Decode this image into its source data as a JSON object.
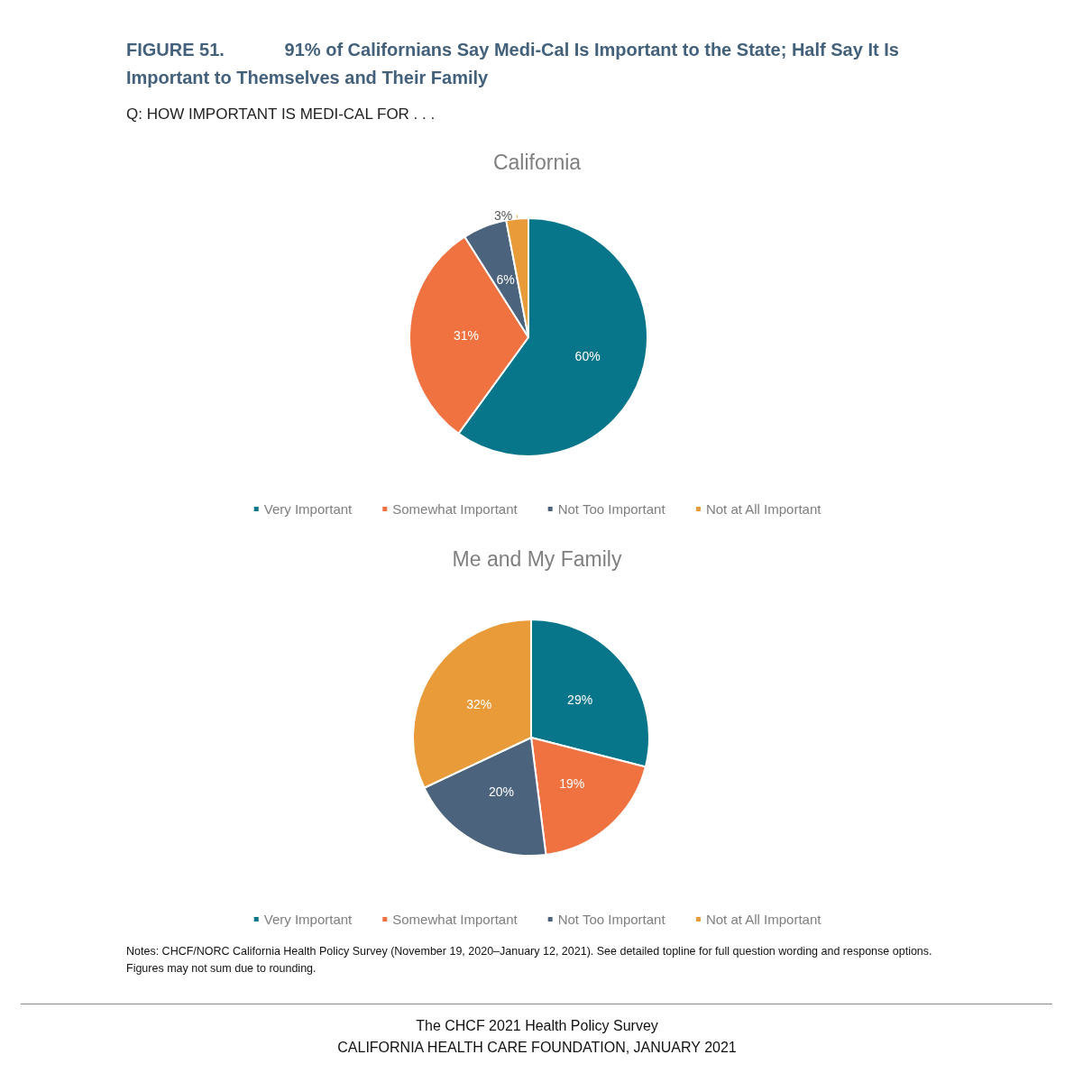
{
  "chart_data": [
    {
      "type": "pie",
      "title": "California",
      "annotations": [
        "FIGURE 51.      91% of Californians Say Medi-Cal Is Important to the State; Half Say It Is Important to Themselves and Their Family",
        "Q: HOW IMPORTANT IS MEDI-CAL FOR . . ."
      ],
      "categories": [
        "Very Important",
        "Somewhat Important",
        "Not Too Important",
        "Not at All Important"
      ],
      "values": [
        60,
        31,
        6,
        3
      ],
      "value_labels": [
        "60%",
        "31%",
        "6%",
        "3%"
      ],
      "colors": [
        "#07758a",
        "#f07240",
        "#4b637d",
        "#e99b3a"
      ],
      "legend": "bottom"
    },
    {
      "type": "pie",
      "title": "Me and My Family",
      "annotations": [
        "Notes: CHCF/NORC California Health Policy Survey (November 19, 2020–January 12, 2021). See detailed topline for full question wording and response options. Figures may not sum due to rounding.",
        "The CHCF 2021 Health Policy Survey",
        "CALIFORNIA HEALTH CARE FOUNDATION, JANUARY 2021"
      ],
      "categories": [
        "Very Important",
        "Somewhat Important",
        "Not Too Important",
        "Not at All Important"
      ],
      "values": [
        29,
        19,
        20,
        32
      ],
      "value_labels": [
        "29%",
        "19%",
        "20%",
        "32%"
      ],
      "colors": [
        "#07758a",
        "#f07240",
        "#4b637d",
        "#e99b3a"
      ],
      "legend": "bottom"
    }
  ]
}
